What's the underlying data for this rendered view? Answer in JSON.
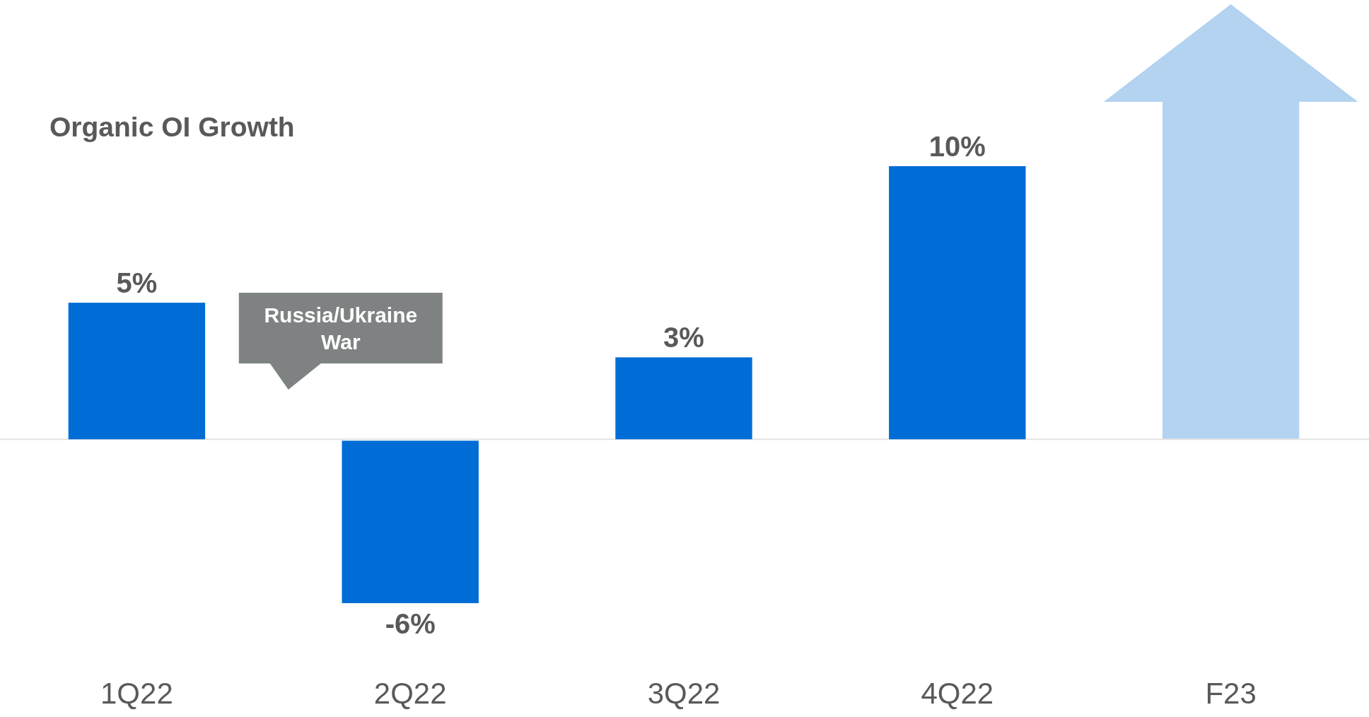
{
  "chart_data": {
    "type": "bar",
    "title": "Organic OI Growth",
    "categories": [
      "1Q22",
      "2Q22",
      "3Q22",
      "4Q22",
      "F23"
    ],
    "values": [
      5,
      -6,
      3,
      10,
      null
    ],
    "color": "#006dd6",
    "value_labels": [
      "5%",
      "-6%",
      "3%",
      "10%",
      null
    ],
    "annotations": [
      "Russia/Ukraine War"
    ]
  }
}
